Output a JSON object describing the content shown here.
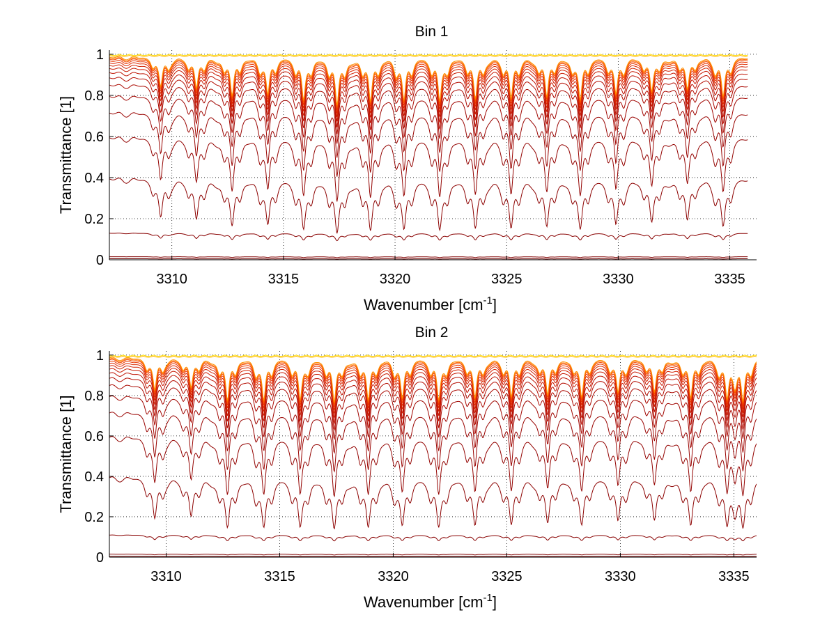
{
  "chart_data": [
    {
      "type": "line",
      "title": "Bin 1",
      "xlabel": "Wavenumber [cm",
      "xlabel_sup": "-1",
      "xlabel_end": "]",
      "ylabel": "Transmittance [1]",
      "xlim": [
        3307.2,
        3336.2
      ],
      "ylim": [
        0,
        1.02
      ],
      "x_data_end": 3335.8,
      "xticks": [
        3310,
        3315,
        3320,
        3325,
        3330,
        3335
      ],
      "xtick_labels": [
        "3310",
        "3315",
        "3320",
        "3325",
        "3330",
        "3335"
      ],
      "yticks": [
        0,
        0.2,
        0.4,
        0.6,
        0.8,
        1
      ],
      "ytick_labels": [
        "0",
        "0.2",
        "0.4",
        "0.6",
        "0.8",
        "1"
      ],
      "grid": true,
      "legend": "none",
      "line_centers": [
        3309.5,
        3311.1,
        3312.7,
        3314.3,
        3315.9,
        3317.4,
        3318.9,
        3320.4,
        3322.0,
        3323.6,
        3325.2,
        3326.8,
        3328.3,
        3329.9,
        3331.5,
        3333.1,
        3334.7
      ],
      "line_depths": [
        0.55,
        0.6,
        0.75,
        0.72,
        0.82,
        0.95,
        0.88,
        0.85,
        0.84,
        0.8,
        0.82,
        0.76,
        0.8,
        0.72,
        0.66,
        0.62,
        0.78
      ],
      "series_continuum": [
        1.0,
        0.995,
        0.99,
        0.985,
        0.98,
        0.972,
        0.962,
        0.95,
        0.935,
        0.915,
        0.89,
        0.855,
        0.8,
        0.72,
        0.6,
        0.4,
        0.13,
        0.015,
        0.005
      ],
      "series_colors": [
        "#ffdd00",
        "#ffb400",
        "#ff9000",
        "#ff6a00",
        "#f24a00",
        "#e83300",
        "#dd2800",
        "#d21f00",
        "#c81800",
        "#be1100",
        "#b40c00",
        "#aa0800",
        "#a00500",
        "#990300",
        "#930200",
        "#8c0100",
        "#880000",
        "#800000",
        "#700000"
      ]
    },
    {
      "type": "line",
      "title": "Bin 2",
      "xlabel": "Wavenumber [cm",
      "xlabel_sup": "-1",
      "xlabel_end": "]",
      "ylabel": "Transmittance [1]",
      "xlim": [
        3307.5,
        3336.0
      ],
      "ylim": [
        0,
        1.02
      ],
      "x_data_end": 3336.0,
      "xticks": [
        3310,
        3315,
        3320,
        3325,
        3330,
        3335
      ],
      "xtick_labels": [
        "3310",
        "3315",
        "3320",
        "3325",
        "3330",
        "3335"
      ],
      "yticks": [
        0,
        0.2,
        0.4,
        0.6,
        0.8,
        1
      ],
      "ytick_labels": [
        "0",
        "0.2",
        "0.4",
        "0.6",
        "0.8",
        "1"
      ],
      "grid": true,
      "legend": "none",
      "line_centers": [
        3309.5,
        3311.1,
        3312.7,
        3314.3,
        3315.9,
        3317.4,
        3318.9,
        3320.4,
        3322.0,
        3323.6,
        3325.2,
        3326.8,
        3328.3,
        3329.9,
        3331.5,
        3333.1,
        3334.7,
        3335.4
      ],
      "line_depths": [
        0.62,
        0.58,
        0.85,
        0.85,
        0.82,
        0.88,
        0.85,
        0.8,
        0.82,
        0.78,
        0.78,
        0.72,
        0.74,
        0.68,
        0.66,
        0.8,
        0.8,
        0.85
      ],
      "series_continuum": [
        1.0,
        0.995,
        0.99,
        0.985,
        0.98,
        0.972,
        0.962,
        0.95,
        0.935,
        0.915,
        0.89,
        0.855,
        0.8,
        0.72,
        0.6,
        0.4,
        0.11,
        0.015,
        0.005
      ],
      "series_colors": [
        "#ffdd00",
        "#ffb400",
        "#ff9000",
        "#ff6a00",
        "#f24a00",
        "#e83300",
        "#dd2800",
        "#d21f00",
        "#c81800",
        "#be1100",
        "#b40c00",
        "#aa0800",
        "#a00500",
        "#990300",
        "#930200",
        "#8c0100",
        "#880000",
        "#800000",
        "#700000"
      ]
    }
  ]
}
